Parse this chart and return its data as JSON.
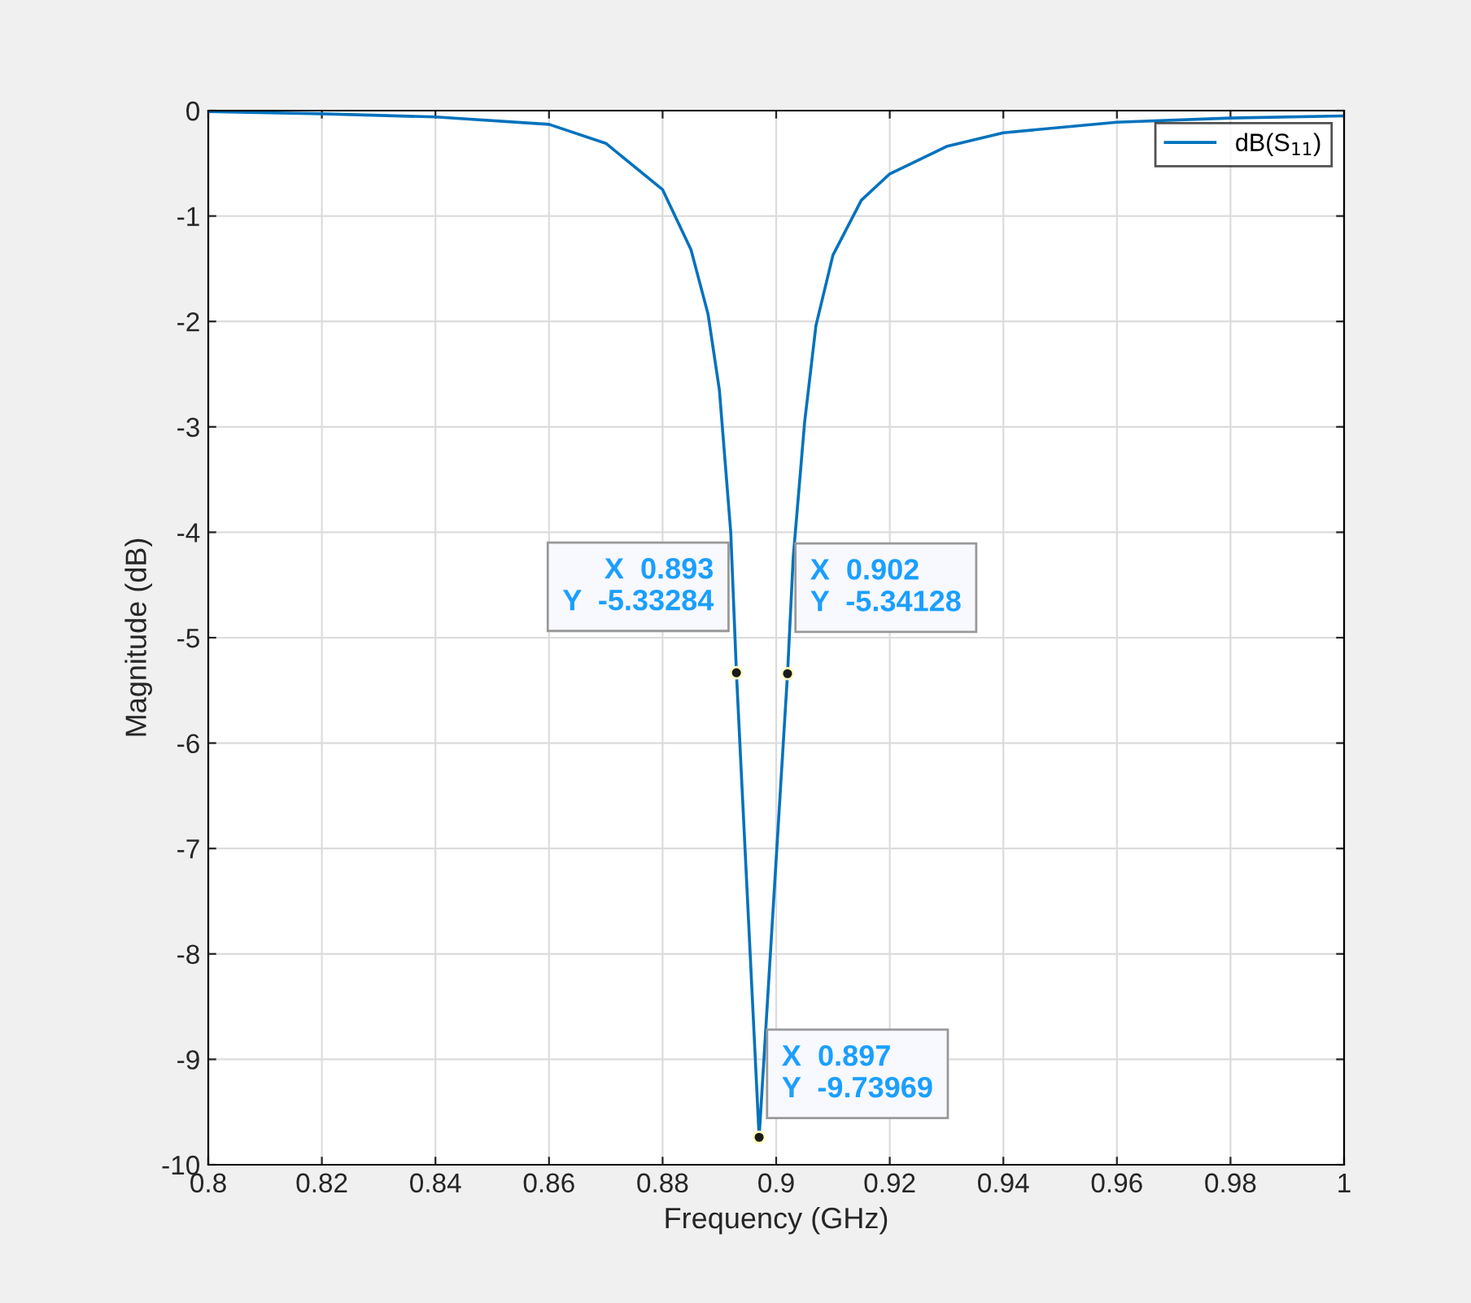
{
  "chart_data": {
    "type": "line",
    "xlabel": "Frequency (GHz)",
    "ylabel": "Magnitude (dB)",
    "x": [
      0.8,
      0.82,
      0.84,
      0.86,
      0.87,
      0.88,
      0.885,
      0.888,
      0.89,
      0.892,
      0.893,
      0.897,
      0.902,
      0.903,
      0.905,
      0.907,
      0.91,
      0.915,
      0.92,
      0.93,
      0.94,
      0.96,
      0.98,
      1.0
    ],
    "series": [
      {
        "name": "dB(S$_{11}$)",
        "color": "#0072bd",
        "values": [
          -0.01,
          -0.03,
          -0.06,
          -0.13,
          -0.31,
          -0.75,
          -1.32,
          -1.93,
          -2.65,
          -4.0,
          -5.33284,
          -9.73969,
          -5.34128,
          -4.24,
          -2.96,
          -2.04,
          -1.37,
          -0.85,
          -0.6,
          -0.34,
          -0.21,
          -0.11,
          -0.07,
          -0.05
        ]
      }
    ],
    "xlim": [
      0.8,
      1.0
    ],
    "xticks": [
      0.8,
      0.82,
      0.84,
      0.86,
      0.88,
      0.9,
      0.92,
      0.94,
      0.96,
      0.98,
      {
        "value": 1.0,
        "label": "1"
      }
    ],
    "ylim": [
      -10,
      0
    ],
    "yticks": [
      -10,
      -9,
      -8,
      -7,
      -6,
      -5,
      -4,
      -3,
      -2,
      -1,
      0
    ],
    "grid": true,
    "legend": "top right",
    "marker": "none",
    "line_style": "solid",
    "annotations": [
      {
        "text": "X  0.893\nY  -5.33284",
        "x": 0.893,
        "y": -5.33284
      },
      {
        "text": "X  0.902\nY  -5.34128",
        "x": 0.902,
        "y": -5.34128
      },
      {
        "text": "X  0.897\nY  -9.73969",
        "x": 0.897,
        "y": -9.73969
      }
    ]
  }
}
